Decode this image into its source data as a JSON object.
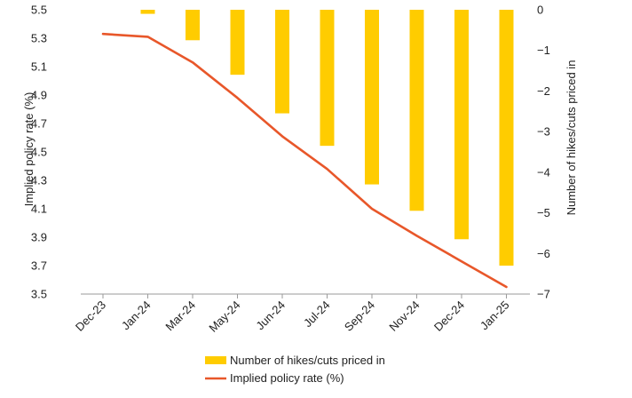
{
  "chart_data": {
    "type": "bar+line",
    "categories": [
      "Dec-23",
      "Jan-24",
      "Mar-24",
      "May-24",
      "Jun-24",
      "Jul-24",
      "Sep-24",
      "Nov-24",
      "Dec-24",
      "Jan-25"
    ],
    "series": [
      {
        "name": "Number of hikes/cuts priced in",
        "type": "bar",
        "axis": "right",
        "color": "#FFCC00",
        "values": [
          0,
          -0.1,
          -0.75,
          -1.6,
          -2.55,
          -3.35,
          -4.3,
          -4.95,
          -5.65,
          -6.3
        ]
      },
      {
        "name": "Implied policy rate (%)",
        "type": "line",
        "axis": "left",
        "color": "#E8572A",
        "values": [
          5.33,
          5.31,
          5.13,
          4.88,
          4.61,
          4.38,
          4.1,
          3.91,
          3.73,
          3.55
        ]
      }
    ],
    "ylabel": "Implied policy rate (%)",
    "ylabel_right": "Number of hikes/cuts priced in",
    "ylim": [
      3.5,
      5.5
    ],
    "yticks": [
      "3.5",
      "3.7",
      "3.9",
      "4.1",
      "4.3",
      "4.5",
      "4.7",
      "4.9",
      "5.1",
      "5.3",
      "5.5"
    ],
    "ylim_right": [
      -7,
      0
    ],
    "yticks_right": [
      "0",
      "-1",
      "-2",
      "-3",
      "-4",
      "-5",
      "-6",
      "-7"
    ],
    "grid": false,
    "legend_position": "bottom-center"
  }
}
